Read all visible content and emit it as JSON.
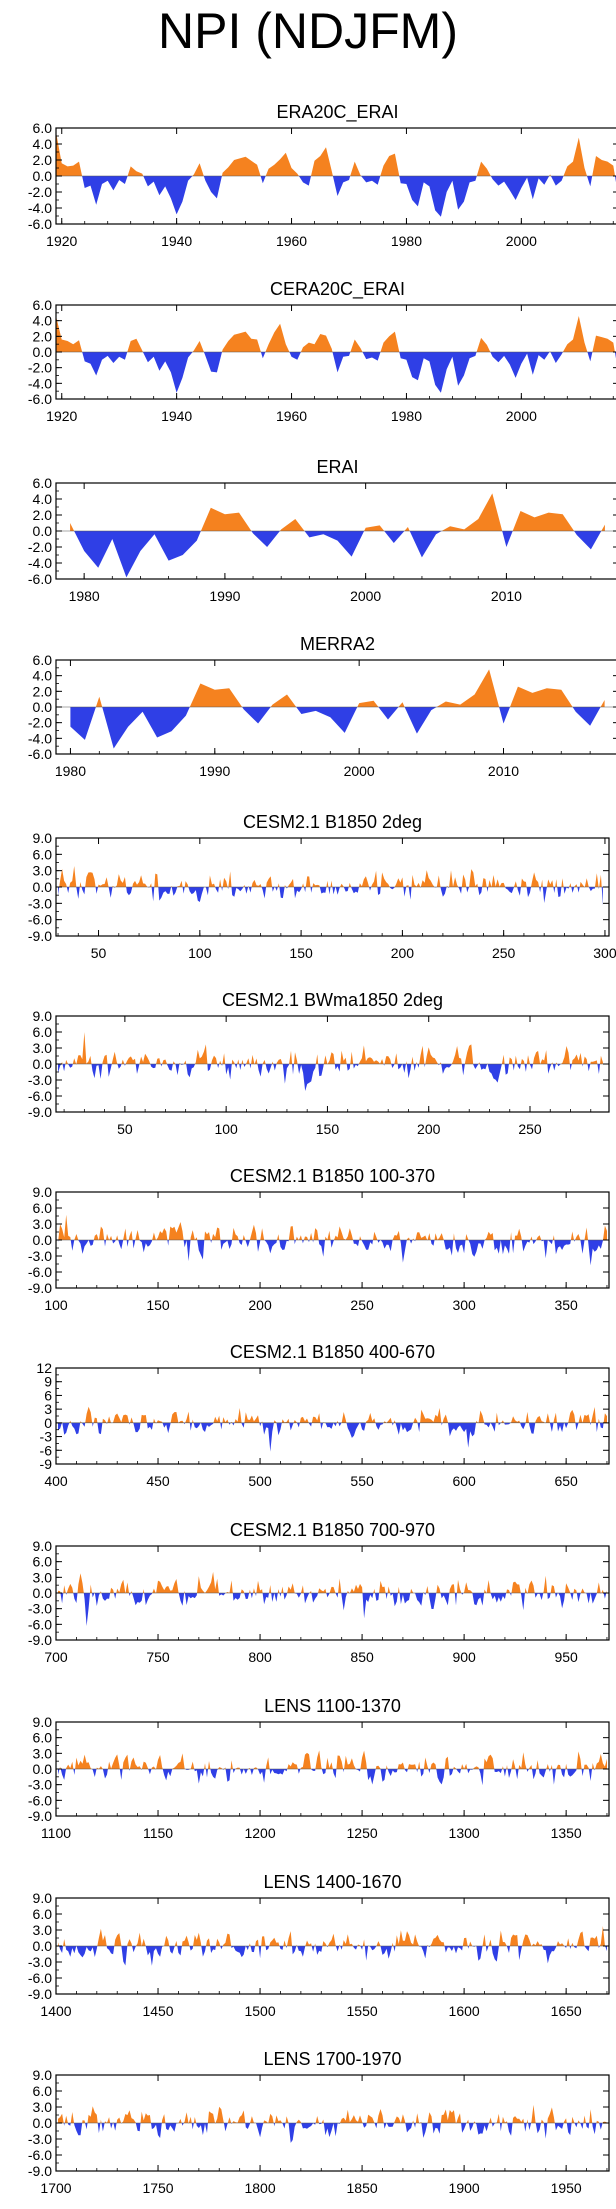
{
  "title": "NPI (NDJFM)",
  "colors": {
    "positive": "#f5821f",
    "negative": "#2f3fe6",
    "axis": "#000000"
  },
  "chart_data": [
    {
      "type": "area",
      "title": "ERA20C_ERAI",
      "xlim": [
        1919,
        2017
      ],
      "ylim": [
        -6.0,
        6.0
      ],
      "yticks": [
        6.0,
        4.0,
        2.0,
        0.0,
        -2.0,
        -4.0,
        -6.0
      ],
      "ytick_labels": [
        "6.0",
        "4.0",
        "2.0",
        "0.0",
        "-2.0",
        "-4.0",
        "-6.0"
      ],
      "xticks": [
        1920,
        1940,
        1960,
        1980,
        2000
      ],
      "xtick_labels": [
        "1920",
        "1940",
        "1960",
        "1980",
        "2000"
      ],
      "x_start": 1919,
      "x_step": 1,
      "values": [
        5.5,
        1.6,
        1.2,
        1.3,
        1.8,
        -1.5,
        -1.2,
        -3.6,
        -1.0,
        -0.6,
        -1.8,
        -0.5,
        -1.0,
        1.2,
        0.6,
        0.3,
        -1.3,
        -0.7,
        -2.4,
        -1.3,
        -2.8,
        -4.8,
        -3.2,
        -0.6,
        0.2,
        1.6,
        -0.6,
        -2.0,
        -2.8,
        0.4,
        1.1,
        2.0,
        2.2,
        2.4,
        1.9,
        1.4,
        -0.9,
        0.9,
        1.4,
        2.1,
        2.9,
        1.0,
        0.3,
        -0.8,
        -1.2,
        1.9,
        2.5,
        3.6,
        0.6,
        -2.5,
        -0.8,
        -0.5,
        1.8,
        0.1,
        -0.8,
        -0.6,
        -1.1,
        1.3,
        2.5,
        2.8,
        -0.9,
        -1.0,
        -3.0,
        -3.8,
        -0.8,
        -1.3,
        -4.3,
        -5.1,
        -2.0,
        -0.6,
        -4.2,
        -3.2,
        -0.8,
        -0.6,
        1.8,
        0.9,
        -0.4,
        -1.2,
        -0.7,
        -1.8,
        -3.0,
        -1.5,
        -0.2,
        -2.9,
        -0.3,
        -1.1,
        0.2,
        -1.2,
        -0.6,
        1.2,
        1.8,
        4.8,
        1.0,
        -1.3,
        2.5,
        2.0,
        1.8,
        1.3,
        -3.1
      ]
    },
    {
      "type": "area",
      "title": "CERA20C_ERAI",
      "xlim": [
        1919,
        2017
      ],
      "ylim": [
        -6.0,
        6.0
      ],
      "yticks": [
        6.0,
        4.0,
        2.0,
        0.0,
        -2.0,
        -4.0,
        -6.0
      ],
      "ytick_labels": [
        "6.0",
        "4.0",
        "2.0",
        "0.0",
        "-2.0",
        "-4.0",
        "-6.0"
      ],
      "xticks": [
        1920,
        1940,
        1960,
        1980,
        2000
      ],
      "xtick_labels": [
        "1920",
        "1940",
        "1960",
        "1980",
        "2000"
      ],
      "x_start": 1919,
      "x_step": 1,
      "values": [
        4.6,
        1.6,
        1.4,
        1.0,
        1.5,
        -1.2,
        -1.5,
        -3.0,
        -1.0,
        -0.5,
        -1.4,
        -0.6,
        -1.0,
        1.4,
        1.7,
        0.2,
        -1.3,
        -0.6,
        -2.4,
        -1.2,
        -2.6,
        -5.2,
        -3.3,
        -0.7,
        0.2,
        1.4,
        -0.5,
        -2.5,
        -2.6,
        0.3,
        1.4,
        2.2,
        2.4,
        2.6,
        1.7,
        1.6,
        -0.8,
        1.0,
        2.5,
        3.6,
        1.0,
        -0.6,
        -1.0,
        0.6,
        1.2,
        1.0,
        2.3,
        2.1,
        0.4,
        -2.6,
        -0.6,
        -0.5,
        1.6,
        0.5,
        -0.9,
        -0.7,
        -1.1,
        1.2,
        2.0,
        2.6,
        -0.8,
        -1.0,
        -3.2,
        -3.6,
        -0.8,
        -1.2,
        -4.2,
        -5.2,
        -2.2,
        -0.6,
        -4.3,
        -3.0,
        -0.8,
        -0.5,
        1.8,
        0.9,
        -0.6,
        -1.3,
        -0.5,
        -1.6,
        -3.3,
        -1.5,
        -0.2,
        -2.9,
        -0.4,
        -1.0,
        0.1,
        -1.4,
        -0.3,
        1.0,
        1.6,
        4.6,
        1.2,
        -1.2,
        2.1,
        1.9,
        1.7,
        1.2,
        -3.1
      ]
    },
    {
      "type": "area",
      "title": "ERAI",
      "xlim": [
        1978,
        2018
      ],
      "ylim": [
        -6.0,
        6.0
      ],
      "yticks": [
        6.0,
        4.0,
        2.0,
        0.0,
        -2.0,
        -4.0,
        -6.0
      ],
      "ytick_labels": [
        "6.0",
        "4.0",
        "2.0",
        "0.0",
        "-2.0",
        "-4.0",
        "-6.0"
      ],
      "xticks": [
        1980,
        1990,
        2000,
        2010
      ],
      "xtick_labels": [
        "1980",
        "1990",
        "2000",
        "2010"
      ],
      "x_start": 1979,
      "x_step": 1,
      "values": [
        1.0,
        -2.5,
        -4.6,
        -1.0,
        -5.8,
        -2.5,
        -0.4,
        -3.7,
        -3.0,
        -1.2,
        2.9,
        2.1,
        2.3,
        -0.3,
        -2.0,
        0.2,
        1.5,
        -0.8,
        -0.4,
        -1.2,
        -3.2,
        0.4,
        0.7,
        -1.5,
        0.5,
        -3.3,
        -0.4,
        0.6,
        0.2,
        1.5,
        4.7,
        -2.0,
        2.5,
        1.7,
        2.3,
        2.1,
        -0.5,
        -2.3,
        0.8
      ]
    },
    {
      "type": "area",
      "title": "MERRA2",
      "xlim": [
        1979,
        2018
      ],
      "ylim": [
        -6.0,
        6.0
      ],
      "yticks": [
        6.0,
        4.0,
        2.0,
        0.0,
        -2.0,
        -4.0,
        -6.0
      ],
      "ytick_labels": [
        "6.0",
        "4.0",
        "2.0",
        "0.0",
        "-2.0",
        "-4.0",
        "-6.0"
      ],
      "xticks": [
        1980,
        1990,
        2000,
        2010
      ],
      "xtick_labels": [
        "1980",
        "1990",
        "2000",
        "2010"
      ],
      "x_start": 1980,
      "x_step": 1,
      "values": [
        -2.5,
        -4.2,
        1.3,
        -5.3,
        -2.5,
        -0.6,
        -3.9,
        -3.1,
        -1.1,
        3.0,
        2.2,
        2.4,
        -0.3,
        -2.1,
        0.3,
        1.6,
        -0.9,
        -0.5,
        -1.3,
        -3.3,
        0.5,
        0.8,
        -1.6,
        0.6,
        -3.4,
        -0.4,
        0.7,
        0.3,
        1.6,
        4.8,
        -2.1,
        2.6,
        1.8,
        2.4,
        2.2,
        -0.6,
        -2.4,
        0.9
      ]
    },
    {
      "type": "area",
      "title": "CESM2.1 B1850 2deg",
      "xlim": [
        29,
        302
      ],
      "ylim": [
        -9.0,
        9.0
      ],
      "yticks": [
        9.0,
        6.0,
        3.0,
        0.0,
        -3.0,
        -6.0,
        -9.0
      ],
      "ytick_labels": [
        "9.0",
        "6.0",
        "3.0",
        "0.0",
        "-3.0",
        "-6.0",
        "-9.0"
      ],
      "xticks": [
        50,
        100,
        150,
        200,
        250,
        300
      ],
      "xtick_labels": [
        "50",
        "100",
        "150",
        "200",
        "250",
        "300"
      ],
      "series_seed": 11,
      "n": 270
    },
    {
      "type": "area",
      "title": "CESM2.1 BWma1850 2deg",
      "xlim": [
        16,
        289
      ],
      "ylim": [
        -9.0,
        9.0
      ],
      "yticks": [
        9.0,
        6.0,
        3.0,
        0.0,
        -3.0,
        -6.0,
        -9.0
      ],
      "ytick_labels": [
        "9.0",
        "6.0",
        "3.0",
        "0.0",
        "-3.0",
        "-6.0",
        "-9.0"
      ],
      "xticks": [
        50,
        100,
        150,
        200,
        250
      ],
      "xtick_labels": [
        "50",
        "100",
        "150",
        "200",
        "250"
      ],
      "series_seed": 23,
      "n": 270
    },
    {
      "type": "area",
      "title": "CESM2.1 B1850 100-370",
      "xlim": [
        100,
        371
      ],
      "ylim": [
        -9.0,
        9.0
      ],
      "yticks": [
        9.0,
        6.0,
        3.0,
        0.0,
        -3.0,
        -6.0,
        -9.0
      ],
      "ytick_labels": [
        "9.0",
        "6.0",
        "3.0",
        "0.0",
        "-3.0",
        "-6.0",
        "-9.0"
      ],
      "xticks": [
        100,
        150,
        200,
        250,
        300,
        350
      ],
      "xtick_labels": [
        "100",
        "150",
        "200",
        "250",
        "300",
        "350"
      ],
      "series_seed": 37,
      "n": 270
    },
    {
      "type": "area",
      "title": "CESM2.1 B1850 400-670",
      "xlim": [
        400,
        671
      ],
      "ylim": [
        -9,
        12
      ],
      "yticks": [
        12,
        9,
        6,
        3,
        0,
        -3,
        -6,
        -9
      ],
      "ytick_labels": [
        "12",
        "9",
        "6",
        "3",
        "0",
        "-3",
        "-6",
        "-9"
      ],
      "xticks": [
        400,
        450,
        500,
        550,
        600,
        650
      ],
      "xtick_labels": [
        "400",
        "450",
        "500",
        "550",
        "600",
        "650"
      ],
      "series_seed": 41,
      "n": 270
    },
    {
      "type": "area",
      "title": "CESM2.1 B1850 700-970",
      "xlim": [
        700,
        971
      ],
      "ylim": [
        -9.0,
        9.0
      ],
      "yticks": [
        9.0,
        6.0,
        3.0,
        0.0,
        -3.0,
        -6.0,
        -9.0
      ],
      "ytick_labels": [
        "9.0",
        "6.0",
        "3.0",
        "0.0",
        "-3.0",
        "-6.0",
        "-9.0"
      ],
      "xticks": [
        700,
        750,
        800,
        850,
        900,
        950
      ],
      "xtick_labels": [
        "700",
        "750",
        "800",
        "850",
        "900",
        "950"
      ],
      "series_seed": 53,
      "n": 270
    },
    {
      "type": "area",
      "title": "LENS 1100-1370",
      "xlim": [
        1100,
        1371
      ],
      "ylim": [
        -9.0,
        9.0
      ],
      "yticks": [
        9.0,
        6.0,
        3.0,
        0.0,
        -3.0,
        -6.0,
        -9.0
      ],
      "ytick_labels": [
        "9.0",
        "6.0",
        "3.0",
        "0.0",
        "-3.0",
        "-6.0",
        "-9.0"
      ],
      "xticks": [
        1100,
        1150,
        1200,
        1250,
        1300,
        1350
      ],
      "xtick_labels": [
        "1100",
        "1150",
        "1200",
        "1250",
        "1300",
        "1350"
      ],
      "series_seed": 67,
      "n": 270
    },
    {
      "type": "area",
      "title": "LENS 1400-1670",
      "xlim": [
        1400,
        1671
      ],
      "ylim": [
        -9.0,
        9.0
      ],
      "yticks": [
        9.0,
        6.0,
        3.0,
        0.0,
        -3.0,
        -6.0,
        -9.0
      ],
      "ytick_labels": [
        "9.0",
        "6.0",
        "3.0",
        "0.0",
        "-3.0",
        "-6.0",
        "-9.0"
      ],
      "xticks": [
        1400,
        1450,
        1500,
        1550,
        1600,
        1650
      ],
      "xtick_labels": [
        "1400",
        "1450",
        "1500",
        "1550",
        "1600",
        "1650"
      ],
      "series_seed": 79,
      "n": 270
    },
    {
      "type": "area",
      "title": "LENS 1700-1970",
      "xlim": [
        1700,
        1971
      ],
      "ylim": [
        -9.0,
        9.0
      ],
      "yticks": [
        9.0,
        6.0,
        3.0,
        0.0,
        -3.0,
        -6.0,
        -9.0
      ],
      "ytick_labels": [
        "9.0",
        "6.0",
        "3.0",
        "0.0",
        "-3.0",
        "-6.0",
        "-9.0"
      ],
      "xticks": [
        1700,
        1750,
        1800,
        1850,
        1900,
        1950
      ],
      "xtick_labels": [
        "1700",
        "1750",
        "1800",
        "1850",
        "1900",
        "1950"
      ],
      "series_seed": 97,
      "n": 270
    }
  ]
}
